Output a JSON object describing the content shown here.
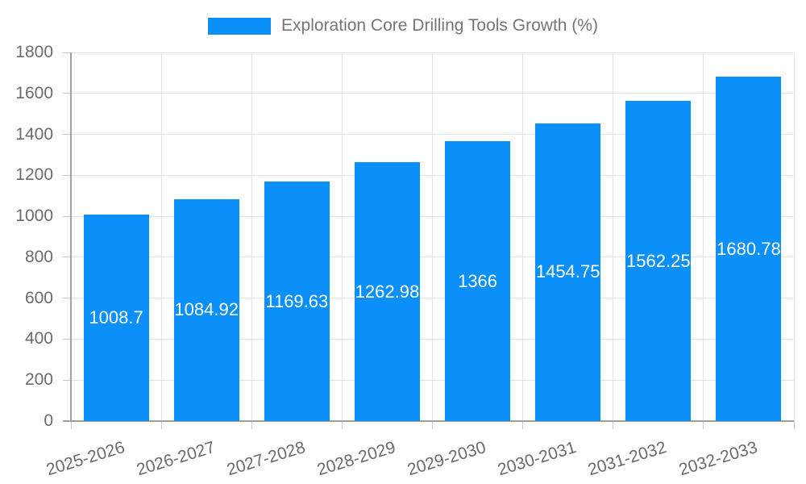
{
  "legend": {
    "label": "Exploration Core Drilling Tools Growth (%)"
  },
  "chart_data": {
    "type": "bar",
    "title": "Exploration Core Drilling Tools Growth (%)",
    "categories": [
      "2025-2026",
      "2026-2027",
      "2027-2028",
      "2028-2029",
      "2029-2030",
      "2030-2031",
      "2031-2032",
      "2032-2033"
    ],
    "series": [
      {
        "name": "Exploration Core Drilling Tools Growth (%)",
        "values": [
          1008.7,
          1084.92,
          1169.63,
          1262.98,
          1366,
          1454.75,
          1562.25,
          1680.78
        ]
      }
    ],
    "value_labels": [
      "1008.7",
      "1084.92",
      "1169.63",
      "1262.98",
      "1366",
      "1454.75",
      "1562.25",
      "1680.78"
    ],
    "xlabel": "",
    "ylabel": "",
    "ylim": [
      0,
      1800
    ],
    "yticks": [
      0,
      200,
      400,
      600,
      800,
      1000,
      1200,
      1400,
      1600,
      1800
    ],
    "grid": true,
    "legend_position": "top",
    "x_label_rotation_deg": -17,
    "colors": {
      "bar": "#0a90f8",
      "value_label": "#ffffff",
      "grid": "#e3e3e3",
      "axis": "#9f9f9f",
      "tick": "#c9c9c9",
      "tick_label": "#6b6b6b",
      "legend_text": "#757575"
    }
  }
}
